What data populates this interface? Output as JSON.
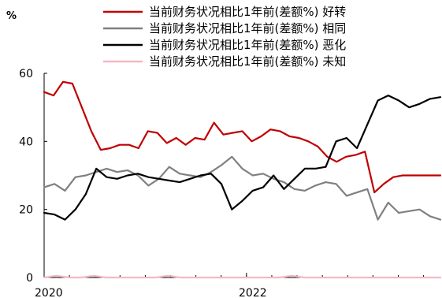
{
  "chart_data": {
    "type": "line",
    "title": "",
    "ylabel": "%",
    "xlabel": "",
    "ylim": [
      0,
      60
    ],
    "yticks": [
      "0",
      "20",
      "40",
      "60"
    ],
    "xticks": [
      "2020",
      "2022"
    ],
    "x_periods": 48,
    "legend_position": "top",
    "grid": false,
    "series": [
      {
        "name": "当前财务状况相比1年前(差额%)  好转",
        "color": "#c00000",
        "values": [
          54.5,
          53.5,
          57.5,
          57.0,
          50.0,
          43.0,
          37.5,
          38.0,
          39.0,
          39.0,
          38.0,
          43.0,
          42.5,
          39.5,
          41.0,
          39.0,
          41.0,
          40.5,
          45.5,
          42.0,
          42.5,
          43.0,
          40.0,
          41.5,
          43.5,
          43.0,
          41.5,
          41.0,
          40.0,
          38.5,
          35.5,
          34.0,
          35.5,
          36.0,
          37.0,
          25.0,
          27.5,
          29.5,
          30.0,
          30.0,
          30.0,
          30.0,
          30.0
        ]
      },
      {
        "name": "当前财务状况相比1年前(差额%)  相同",
        "color": "#808080",
        "values": [
          26.5,
          27.5,
          25.5,
          29.5,
          30.0,
          31.0,
          32.0,
          31.0,
          31.5,
          30.0,
          27.0,
          29.0,
          32.5,
          30.5,
          30.0,
          29.5,
          31.0,
          33.0,
          35.5,
          32.0,
          30.0,
          30.5,
          29.0,
          28.0,
          26.0,
          25.5,
          27.0,
          28.0,
          27.5,
          24.0,
          25.0,
          26.0,
          17.0,
          22.0,
          19.0,
          19.5,
          20.0,
          18.0,
          17.0
        ]
      },
      {
        "name": "当前财务状况相比1年前(差额%)  恶化",
        "color": "#000000",
        "values": [
          19.0,
          18.5,
          17.0,
          20.0,
          24.5,
          32.0,
          29.5,
          29.0,
          30.0,
          30.5,
          29.5,
          29.0,
          28.5,
          28.0,
          29.0,
          30.0,
          30.5,
          27.5,
          20.0,
          22.5,
          25.5,
          26.5,
          30.0,
          26.0,
          29.0,
          32.0,
          32.0,
          32.5,
          40.0,
          41.0,
          38.0,
          45.0,
          52.0,
          53.5,
          52.0,
          50.0,
          51.0,
          52.5,
          53.0
        ]
      },
      {
        "name": "当前财务状况相比1年前(差额%)  未知",
        "color": "#f4b8c4",
        "values": [
          0.0,
          0.5,
          0.0,
          0.0,
          0.5,
          0.0,
          0.0,
          0.0,
          0.0,
          0.0,
          0.5,
          0.0,
          0.0,
          0.0,
          0.0,
          0.0,
          0.0,
          0.0,
          0.0,
          0.0,
          0.5,
          0.0,
          0.0,
          0.0,
          0.0,
          0.0,
          0.0,
          0.0,
          0.0,
          0.0,
          0.0,
          0.0,
          0.0
        ]
      }
    ]
  }
}
